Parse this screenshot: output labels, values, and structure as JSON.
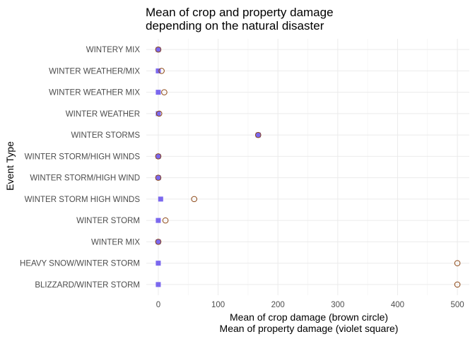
{
  "chart_data": {
    "type": "scatter",
    "title_lines": [
      "Mean of crop and property damage",
      "depending on the natural disaster"
    ],
    "xlabel_lines": [
      "Mean of crop damage (brown circle)",
      "Mean of property damage (violet square)"
    ],
    "ylabel": "Event Type",
    "xlim": [
      -20,
      520
    ],
    "x_ticks": [
      0,
      100,
      200,
      300,
      400,
      500
    ],
    "grid": true,
    "categories": [
      "WINTERY MIX",
      "WINTER WEATHER/MIX",
      "WINTER WEATHER MIX",
      "WINTER WEATHER",
      "WINTER STORMS",
      "WINTER STORM/HIGH WINDS",
      "WINTER STORM/HIGH WIND",
      "WINTER STORM HIGH WINDS",
      "WINTER STORM",
      "WINTER MIX",
      "HEAVY SNOW/WINTER STORM",
      "BLIZZARD/WINTER STORM"
    ],
    "series": [
      {
        "name": "Mean of crop damage",
        "marker": "circle",
        "color": "#8b4513",
        "values": [
          0.0,
          5.5,
          10.0,
          1.5,
          167.0,
          0.0,
          0.0,
          60.0,
          12.0,
          0.0,
          500.0,
          500.0
        ]
      },
      {
        "name": "Mean of property damage",
        "marker": "square",
        "color": "#7b68ee",
        "values": [
          0.0,
          0.0,
          0.0,
          0.0,
          167.0,
          0.0,
          0.0,
          4.0,
          0.0,
          0.0,
          0.0,
          0.0
        ]
      }
    ]
  }
}
